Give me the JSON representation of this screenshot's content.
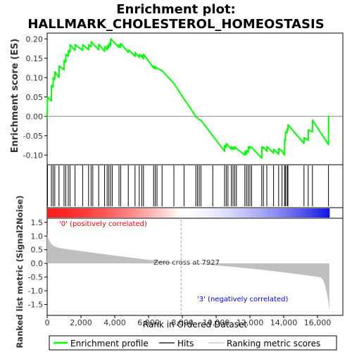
{
  "chart_data": {
    "type": "line",
    "title_line1": "Enrichment plot:",
    "title_line2": "HALLMARK_CHOLESTEROL_HOMEOSTASIS",
    "xlabel": "Rank in Ordered Dataset",
    "ylabel_top": "Enrichment score (ES)",
    "ylabel_bottom": "Ranked list metric (Signal2Noise)",
    "x_range": [
      0,
      17500
    ],
    "x_ticks": [
      0,
      2000,
      4000,
      6000,
      8000,
      10000,
      12000,
      14000,
      16000
    ],
    "x_tick_labels": [
      "0",
      "2,000",
      "4,000",
      "6,000",
      "8,000",
      "10,000",
      "12,000",
      "14,000",
      "16,000"
    ],
    "es_range": [
      -0.125,
      0.215
    ],
    "es_ticks": [
      -0.1,
      -0.05,
      0.0,
      0.05,
      0.1,
      0.15,
      0.2
    ],
    "es_tick_labels": [
      "-0.10",
      "-0.05",
      "0.00",
      "0.05",
      "0.10",
      "0.15",
      "0.20"
    ],
    "metric_range": [
      -1.9,
      1.65
    ],
    "metric_ticks": [
      -1.5,
      -1.0,
      -0.5,
      0.0,
      0.5,
      1.0,
      1.5
    ],
    "metric_tick_labels": [
      "-1.5",
      "-1.0",
      "-0.5",
      "0.0",
      "0.5",
      "1.0",
      "1.5"
    ],
    "total_genes": 16700,
    "zero_cross": 7927,
    "zero_cross_label": "Zero cross at 7927",
    "positive_label": "'0' (positively correlated)",
    "negative_label": "'3' (negatively correlated)",
    "hits": [
      20,
      250,
      350,
      450,
      700,
      1000,
      1100,
      1250,
      1350,
      1650,
      2100,
      2450,
      2600,
      2700,
      3050,
      3400,
      3550,
      3650,
      3750,
      3850,
      4250,
      4350,
      4800,
      5200,
      5450,
      5600,
      5700,
      6300,
      6400,
      6500,
      6800,
      7500,
      8100,
      8800,
      8900,
      9000,
      9100,
      9800,
      10500,
      10600,
      10700,
      10900,
      11000,
      11100,
      11200,
      11700,
      11800,
      11900,
      12000,
      12100,
      12700,
      12800,
      13000,
      13400,
      13700,
      13900,
      14050,
      14100,
      14200,
      14250,
      15200,
      15450,
      15700,
      16650
    ],
    "es_points": [
      [
        0,
        -0.005
      ],
      [
        20,
        0.05
      ],
      [
        250,
        0.04
      ],
      [
        260,
        0.08
      ],
      [
        350,
        0.075
      ],
      [
        360,
        0.1
      ],
      [
        450,
        0.095
      ],
      [
        460,
        0.115
      ],
      [
        700,
        0.1
      ],
      [
        710,
        0.13
      ],
      [
        1000,
        0.12
      ],
      [
        1010,
        0.145
      ],
      [
        1100,
        0.14
      ],
      [
        1110,
        0.16
      ],
      [
        1250,
        0.155
      ],
      [
        1260,
        0.17
      ],
      [
        1350,
        0.165
      ],
      [
        1360,
        0.185
      ],
      [
        1650,
        0.17
      ],
      [
        1660,
        0.185
      ],
      [
        2100,
        0.17
      ],
      [
        2110,
        0.185
      ],
      [
        2450,
        0.172
      ],
      [
        2460,
        0.185
      ],
      [
        2600,
        0.18
      ],
      [
        2610,
        0.193
      ],
      [
        2700,
        0.188
      ],
      [
        3050,
        0.172
      ],
      [
        3060,
        0.186
      ],
      [
        3400,
        0.168
      ],
      [
        3410,
        0.18
      ],
      [
        3550,
        0.172
      ],
      [
        3560,
        0.183
      ],
      [
        3650,
        0.176
      ],
      [
        3660,
        0.188
      ],
      [
        3750,
        0.182
      ],
      [
        3760,
        0.2
      ],
      [
        4250,
        0.178
      ],
      [
        4260,
        0.185
      ],
      [
        4350,
        0.178
      ],
      [
        4360,
        0.188
      ],
      [
        4800,
        0.165
      ],
      [
        4810,
        0.172
      ],
      [
        5200,
        0.155
      ],
      [
        5210,
        0.165
      ],
      [
        5450,
        0.152
      ],
      [
        5460,
        0.16
      ],
      [
        5600,
        0.153
      ],
      [
        5610,
        0.158
      ],
      [
        5700,
        0.148
      ],
      [
        5710,
        0.16
      ],
      [
        6300,
        0.125
      ],
      [
        6310,
        0.13
      ],
      [
        6400,
        0.122
      ],
      [
        6410,
        0.128
      ],
      [
        6500,
        0.124
      ],
      [
        6800,
        0.118
      ],
      [
        7500,
        0.085
      ],
      [
        8100,
        0.045
      ],
      [
        8800,
        0.0
      ],
      [
        8900,
        -0.005
      ],
      [
        9000,
        -0.008
      ],
      [
        9100,
        -0.01
      ],
      [
        9800,
        -0.05
      ],
      [
        10500,
        -0.09
      ],
      [
        10510,
        -0.075
      ],
      [
        10600,
        -0.08
      ],
      [
        10610,
        -0.07
      ],
      [
        10700,
        -0.075
      ],
      [
        10900,
        -0.085
      ],
      [
        10910,
        -0.078
      ],
      [
        11000,
        -0.085
      ],
      [
        11010,
        -0.08
      ],
      [
        11100,
        -0.085
      ],
      [
        11110,
        -0.078
      ],
      [
        11200,
        -0.083
      ],
      [
        11700,
        -0.1
      ],
      [
        11710,
        -0.09
      ],
      [
        11800,
        -0.098
      ],
      [
        11810,
        -0.088
      ],
      [
        11900,
        -0.093
      ],
      [
        11910,
        -0.078
      ],
      [
        12000,
        -0.083
      ],
      [
        12010,
        -0.078
      ],
      [
        12100,
        -0.08
      ],
      [
        12700,
        -0.108
      ],
      [
        12710,
        -0.078
      ],
      [
        12800,
        -0.083
      ],
      [
        12810,
        -0.08
      ],
      [
        13000,
        -0.09
      ],
      [
        13010,
        -0.078
      ],
      [
        13400,
        -0.095
      ],
      [
        13410,
        -0.085
      ],
      [
        13700,
        -0.098
      ],
      [
        13710,
        -0.083
      ],
      [
        13900,
        -0.09
      ],
      [
        14050,
        -0.1
      ],
      [
        14060,
        -0.06
      ],
      [
        14100,
        -0.063
      ],
      [
        14110,
        -0.04
      ],
      [
        14200,
        -0.043
      ],
      [
        14210,
        -0.033
      ],
      [
        14250,
        -0.035
      ],
      [
        14260,
        -0.022
      ],
      [
        15200,
        -0.07
      ],
      [
        15210,
        -0.055
      ],
      [
        15450,
        -0.062
      ],
      [
        15460,
        -0.035
      ],
      [
        15700,
        -0.04
      ],
      [
        15710,
        -0.01
      ],
      [
        16650,
        -0.073
      ],
      [
        16660,
        0.002
      ]
    ],
    "legend": {
      "enrichment": "Enrichment profile",
      "hits": "Hits",
      "ranking": "Ranking metric scores"
    },
    "colors": {
      "enrichment_line": "#00ff00",
      "hit_line": "#000000",
      "metric_fill": "#bfbfbf",
      "positive_red": "#ff0000",
      "negative_blue": "#0000ff",
      "neutral": "#ffffff",
      "positive_label": "#ff0000",
      "negative_label": "#0000ff"
    },
    "grid": false,
    "legend_position": "bottom"
  }
}
